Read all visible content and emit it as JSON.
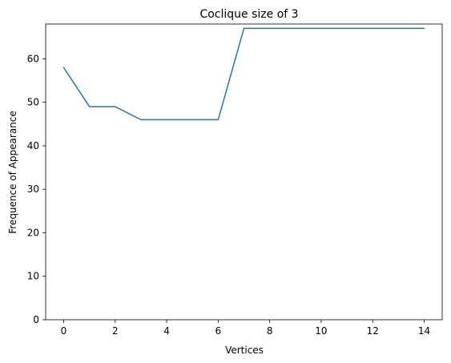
{
  "chart_data": {
    "type": "line",
    "title": "Coclique size of 3",
    "xlabel": "Vertices",
    "ylabel": "Frequence of Appearance",
    "x": [
      0,
      1,
      2,
      3,
      4,
      5,
      6,
      7,
      8,
      9,
      10,
      11,
      12,
      13,
      14
    ],
    "series": [
      {
        "values": [
          58,
          49,
          49,
          46,
          46,
          46,
          46,
          67,
          67,
          67,
          67,
          67,
          67,
          67,
          67
        ],
        "color": "#1f77b4"
      }
    ],
    "xlim": [
      -0.7,
      14.7
    ],
    "ylim": [
      0,
      68
    ],
    "xticks": [
      0,
      2,
      4,
      6,
      8,
      10,
      12,
      14
    ],
    "yticks": [
      0,
      10,
      20,
      30,
      40,
      50,
      60
    ],
    "grid": false,
    "legend": "none"
  }
}
